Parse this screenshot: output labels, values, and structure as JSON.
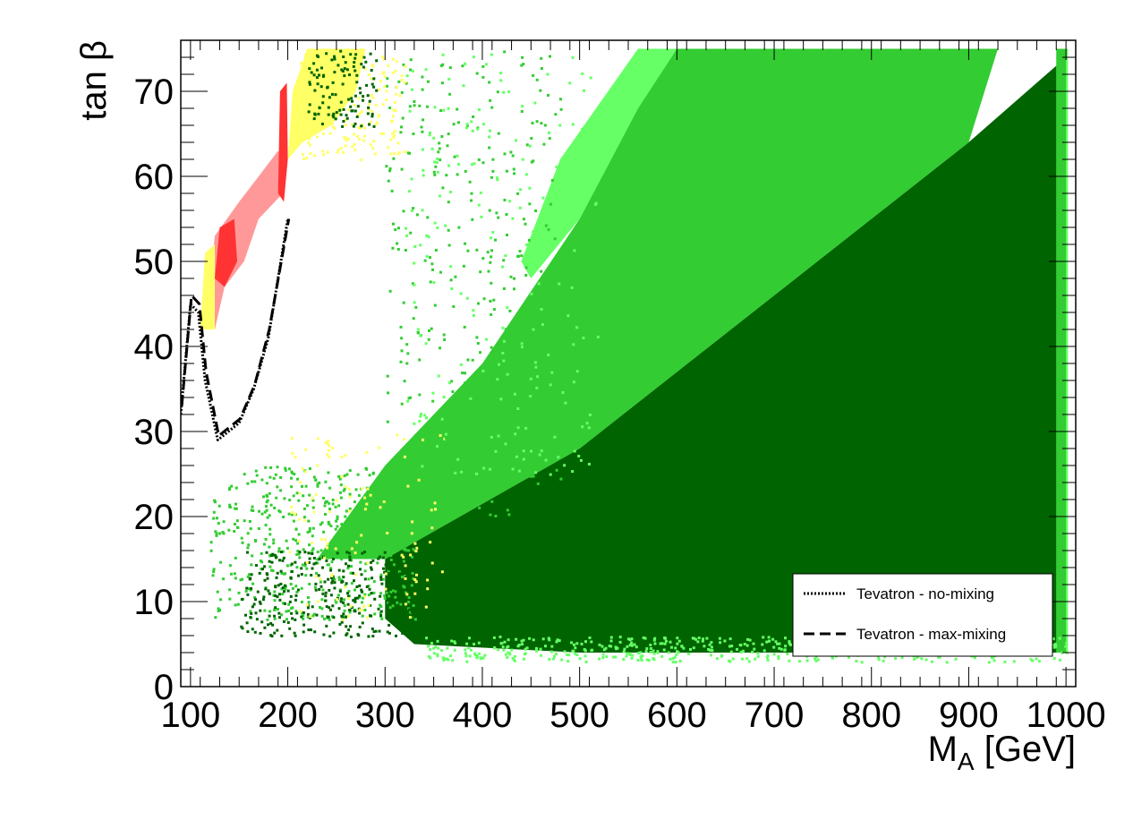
{
  "chart_data": {
    "type": "scatter",
    "title": "",
    "xlabel": "M",
    "xlabel_sub": "A",
    "xlabel_unit": " [GeV]",
    "ylabel": "tan β",
    "xlim": [
      90,
      1010
    ],
    "ylim": [
      0,
      76
    ],
    "xticks": [
      100,
      200,
      300,
      400,
      500,
      600,
      700,
      800,
      900,
      1000
    ],
    "xtick_labels": [
      "100",
      "200",
      "300",
      "400",
      "500",
      "600",
      "700",
      "800",
      "900",
      "1000"
    ],
    "yticks": [
      0,
      10,
      20,
      30,
      40,
      50,
      60,
      70
    ],
    "ytick_labels": [
      "0",
      "10",
      "20",
      "30",
      "40",
      "50",
      "60",
      "70"
    ],
    "grid": false,
    "legend_position": "bottom-right",
    "colors": {
      "dark_green": "#006400",
      "medium_green": "#33cc33",
      "light_green": "#66ff66",
      "yellow": "#ffff66",
      "pink": "#ff9999",
      "red": "#ff3333"
    },
    "regions": [
      {
        "fill": "dark_green",
        "points": [
          [
            300,
            15
          ],
          [
            500,
            28
          ],
          [
            700,
            46
          ],
          [
            900,
            64
          ],
          [
            1000,
            74
          ],
          [
            1000,
            4
          ],
          [
            500,
            4
          ],
          [
            330,
            5
          ],
          [
            300,
            8
          ]
        ]
      },
      {
        "fill": "medium_green",
        "points": [
          [
            230,
            15
          ],
          [
            300,
            26
          ],
          [
            400,
            38
          ],
          [
            500,
            55
          ],
          [
            560,
            68
          ],
          [
            600,
            75
          ],
          [
            930,
            75
          ],
          [
            900,
            64
          ],
          [
            700,
            46
          ],
          [
            500,
            28
          ],
          [
            300,
            15
          ]
        ]
      },
      {
        "fill": "light_green",
        "points": [
          [
            440,
            50
          ],
          [
            480,
            62
          ],
          [
            560,
            75
          ],
          [
            600,
            75
          ],
          [
            560,
            68
          ],
          [
            500,
            55
          ],
          [
            450,
            48
          ]
        ]
      },
      {
        "fill": "light_green",
        "points": [
          [
            990,
            75
          ],
          [
            1002,
            75
          ],
          [
            1002,
            4
          ],
          [
            990,
            4
          ]
        ]
      },
      {
        "fill": "medium_green",
        "points": [
          [
            990,
            75
          ],
          [
            1000,
            75
          ],
          [
            1000,
            4
          ],
          [
            990,
            4
          ]
        ]
      },
      {
        "fill": "pink",
        "points": [
          [
            115,
            42
          ],
          [
            125,
            53
          ],
          [
            150,
            57
          ],
          [
            170,
            60
          ],
          [
            190,
            63
          ],
          [
            198,
            62
          ],
          [
            195,
            58
          ],
          [
            170,
            55
          ],
          [
            155,
            50
          ],
          [
            135,
            47
          ],
          [
            125,
            42
          ]
        ]
      },
      {
        "fill": "red",
        "points": [
          [
            190,
            58
          ],
          [
            192,
            70
          ],
          [
            199,
            71
          ],
          [
            200,
            62
          ],
          [
            196,
            57
          ]
        ]
      },
      {
        "fill": "red",
        "points": [
          [
            125,
            48
          ],
          [
            130,
            54
          ],
          [
            145,
            55
          ],
          [
            148,
            50
          ],
          [
            135,
            47
          ]
        ]
      },
      {
        "fill": "yellow",
        "points": [
          [
            110,
            42
          ],
          [
            115,
            51
          ],
          [
            125,
            52
          ],
          [
            125,
            42
          ]
        ]
      },
      {
        "fill": "yellow",
        "points": [
          [
            200,
            62
          ],
          [
            205,
            70
          ],
          [
            220,
            75
          ],
          [
            280,
            75
          ],
          [
            270,
            70
          ],
          [
            245,
            66
          ],
          [
            215,
            64
          ]
        ]
      }
    ],
    "scatter_bands": [
      {
        "fill": "medium_green",
        "x": [
          120,
          330
        ],
        "y": [
          8,
          26
        ],
        "count": 500
      },
      {
        "fill": "dark_green",
        "x": [
          150,
          330
        ],
        "y": [
          6,
          16
        ],
        "count": 300
      },
      {
        "fill": "yellow",
        "x": [
          200,
          360
        ],
        "y": [
          8,
          30
        ],
        "count": 120
      },
      {
        "fill": "medium_green",
        "x": [
          300,
          480
        ],
        "y": [
          20,
          75
        ],
        "count": 320
      },
      {
        "fill": "light_green",
        "x": [
          320,
          520
        ],
        "y": [
          25,
          75
        ],
        "count": 220
      },
      {
        "fill": "yellow",
        "x": [
          210,
          320
        ],
        "y": [
          62,
          75
        ],
        "count": 160
      },
      {
        "fill": "dark_green",
        "x": [
          220,
          290
        ],
        "y": [
          66,
          75
        ],
        "count": 110
      },
      {
        "fill": "light_green",
        "x": [
          340,
          1000
        ],
        "y": [
          3,
          6
        ],
        "count": 500
      }
    ],
    "curves": [
      {
        "name": "Tevatron - no-mixing",
        "style": "dotted",
        "x": [
          90,
          100,
          108,
          115,
          128,
          150,
          165,
          180,
          200
        ],
        "y": [
          32,
          45,
          44,
          36,
          29,
          31,
          35,
          41,
          55
        ]
      },
      {
        "name": "Tevatron - max-mixing",
        "style": "dashed",
        "x": [
          91,
          101,
          109,
          116,
          129,
          151,
          166,
          181,
          201
        ],
        "y": [
          33,
          46,
          45,
          37,
          29.5,
          31.5,
          35.5,
          42,
          55
        ]
      }
    ],
    "legend": [
      {
        "label": "Tevatron - no-mixing",
        "style": "dotted"
      },
      {
        "label": "Tevatron - max-mixing",
        "style": "dashed"
      }
    ]
  }
}
